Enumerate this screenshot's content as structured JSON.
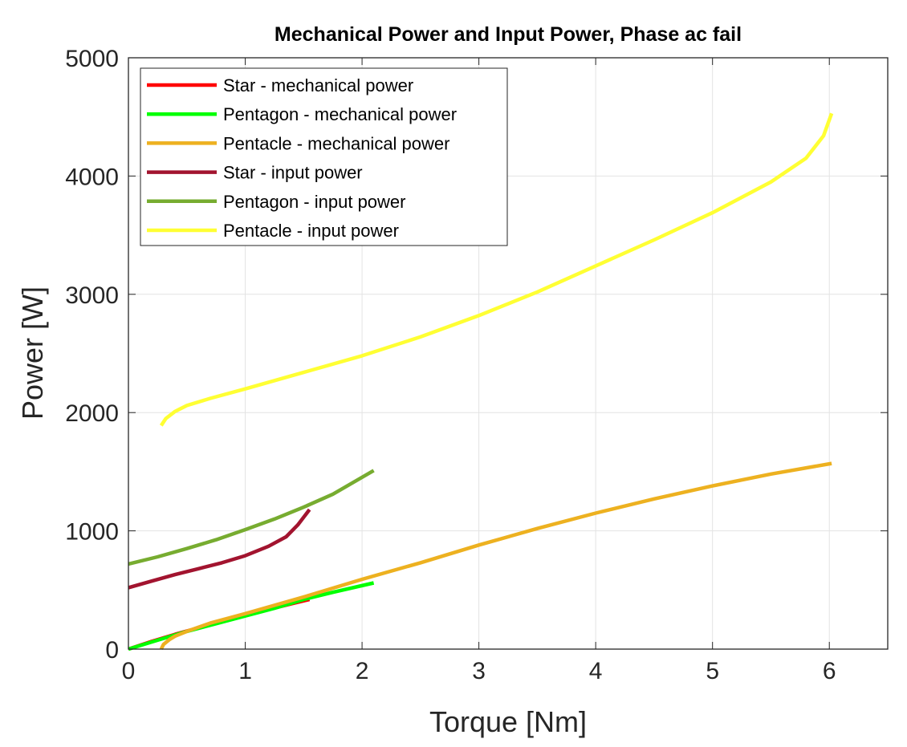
{
  "chart_data": {
    "type": "line",
    "title": "Mechanical Power and Input Power, Phase ac fail",
    "xlabel": "Torque [Nm]",
    "ylabel": "Power [W]",
    "xlim": [
      0,
      6.5
    ],
    "ylim": [
      0,
      5000
    ],
    "xticks": [
      0,
      1,
      2,
      3,
      4,
      5,
      6
    ],
    "yticks": [
      0,
      1000,
      2000,
      3000,
      4000,
      5000
    ],
    "xtick_labels": [
      "0",
      "1",
      "2",
      "3",
      "4",
      "5",
      "6"
    ],
    "ytick_labels": [
      "0",
      "1000",
      "2000",
      "3000",
      "4000",
      "5000"
    ],
    "grid": true,
    "legend_position": "top-left",
    "series": [
      {
        "name": "Star - mechanical power",
        "color": "#ff0000",
        "x": [
          0,
          0.2,
          0.4,
          0.6,
          0.8,
          1.0,
          1.2,
          1.4,
          1.55
        ],
        "y": [
          0,
          65,
          125,
          180,
          235,
          285,
          335,
          385,
          420
        ]
      },
      {
        "name": "Pentagon - mechanical power",
        "color": "#00ff00",
        "x": [
          0,
          0.25,
          0.5,
          0.75,
          1.0,
          1.25,
          1.5,
          1.75,
          2.1
        ],
        "y": [
          0,
          75,
          150,
          215,
          280,
          345,
          420,
          480,
          560
        ]
      },
      {
        "name": "Pentacle - mechanical power",
        "color": "#edb120",
        "x": [
          0.28,
          0.3,
          0.35,
          0.4,
          0.5,
          0.7,
          1.0,
          1.5,
          2.0,
          2.5,
          3.0,
          3.5,
          4.0,
          4.5,
          5.0,
          5.5,
          6.02
        ],
        "y": [
          0,
          40,
          80,
          110,
          150,
          220,
          300,
          440,
          590,
          730,
          880,
          1020,
          1150,
          1270,
          1380,
          1480,
          1570
        ]
      },
      {
        "name": "Star - input power",
        "color": "#a2142f",
        "x": [
          0,
          0.2,
          0.4,
          0.6,
          0.8,
          1.0,
          1.2,
          1.35,
          1.45,
          1.55
        ],
        "y": [
          520,
          575,
          630,
          680,
          730,
          790,
          870,
          950,
          1050,
          1180
        ]
      },
      {
        "name": "Pentagon - input power",
        "color": "#77ac30",
        "x": [
          0,
          0.25,
          0.5,
          0.75,
          1.0,
          1.25,
          1.5,
          1.75,
          2.1
        ],
        "y": [
          720,
          780,
          850,
          925,
          1010,
          1100,
          1200,
          1310,
          1510
        ]
      },
      {
        "name": "Pentacle - input power",
        "color": "#ffff33",
        "x": [
          0.28,
          0.32,
          0.4,
          0.5,
          0.7,
          1.0,
          1.5,
          2.0,
          2.5,
          3.0,
          3.5,
          4.0,
          4.5,
          5.0,
          5.5,
          5.8,
          5.95,
          6.02
        ],
        "y": [
          1890,
          1950,
          2010,
          2060,
          2120,
          2200,
          2340,
          2480,
          2640,
          2820,
          3020,
          3240,
          3460,
          3690,
          3950,
          4150,
          4340,
          4530
        ]
      }
    ]
  }
}
